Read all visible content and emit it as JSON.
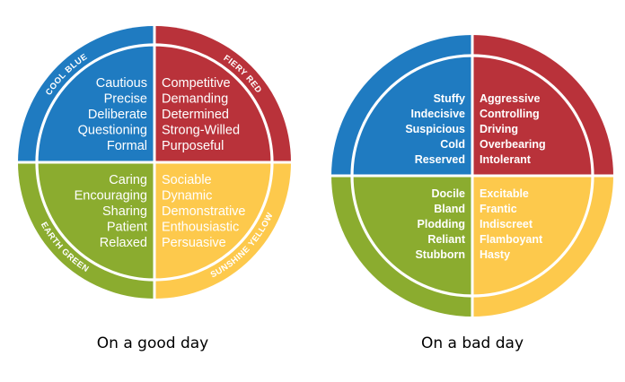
{
  "colors": {
    "blue": "#1f7bc1",
    "red": "#b9323a",
    "green": "#8bac2f",
    "yellow": "#fdc94c",
    "divider": "#ffffff",
    "caption": "#000000"
  },
  "diagrams": [
    {
      "id": "good",
      "caption": "On a good day",
      "ring_labels": {
        "blue": "COOL BLUE",
        "red": "FIERY RED",
        "green": "EARTH GREEN",
        "yellow": "SUNSHINE YELLOW"
      },
      "quadrants": {
        "blue": [
          "Cautious",
          "Precise",
          "Deliberate",
          "Questioning",
          "Formal"
        ],
        "red": [
          "Competitive",
          "Demanding",
          "Determined",
          "Strong-Willed",
          "Purposeful"
        ],
        "green": [
          "Caring",
          "Encouraging",
          "Sharing",
          "Patient",
          "Relaxed"
        ],
        "yellow": [
          "Sociable",
          "Dynamic",
          "Demonstrative",
          "Enthousiastic",
          "Persuasive"
        ]
      }
    },
    {
      "id": "bad",
      "caption": "On a bad day",
      "ring_labels": {},
      "quadrants": {
        "blue": [
          "Stuffy",
          "Indecisive",
          "Suspicious",
          "Cold",
          "Reserved"
        ],
        "red": [
          "Aggressive",
          "Controlling",
          "Driving",
          "Overbearing",
          "Intolerant"
        ],
        "green": [
          "Docile",
          "Bland",
          "Plodding",
          "Reliant",
          "Stubborn"
        ],
        "yellow": [
          "Excitable",
          "Frantic",
          "Indiscreet",
          "Flamboyant",
          "Hasty"
        ]
      }
    }
  ]
}
